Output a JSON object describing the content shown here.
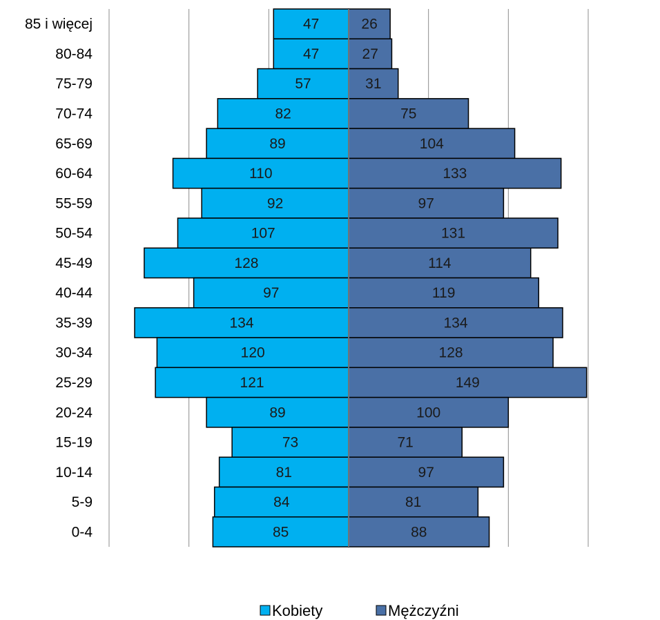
{
  "chart_data": {
    "type": "bar",
    "orientation": "horizontal",
    "layout": "population-pyramid",
    "categories": [
      "85 i więcej",
      "80-84",
      "75-79",
      "70-74",
      "65-69",
      "60-64",
      "55-59",
      "50-54",
      "45-49",
      "40-44",
      "35-39",
      "30-34",
      "25-29",
      "20-24",
      "15-19",
      "10-14",
      "5-9",
      "0-4"
    ],
    "series": [
      {
        "name": "Kobiety",
        "side": "left",
        "color": "#00b0f0",
        "values": [
          47,
          47,
          57,
          82,
          89,
          110,
          92,
          107,
          128,
          97,
          134,
          120,
          121,
          89,
          73,
          81,
          84,
          85
        ]
      },
      {
        "name": "Mężczyźni",
        "side": "right",
        "color": "#4a70a6",
        "values": [
          26,
          27,
          31,
          75,
          104,
          133,
          97,
          131,
          114,
          119,
          134,
          128,
          149,
          100,
          71,
          97,
          81,
          88
        ]
      }
    ],
    "xlim": [
      -150,
      150
    ],
    "grid_step": 50,
    "grid": true,
    "data_labels": true,
    "legend_position": "bottom"
  }
}
